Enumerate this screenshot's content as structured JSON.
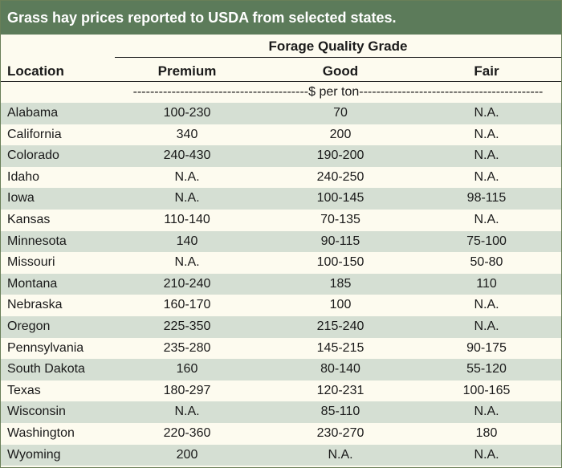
{
  "title": "Grass hay prices reported to USDA from selected states.",
  "header": {
    "group_label": "Forage Quality Grade",
    "location_label": "Location",
    "columns": [
      "Premium",
      "Good",
      "Fair"
    ],
    "units": "-----------------------------------------$ per ton-------------------------------------------"
  },
  "rows": [
    {
      "location": "Alabama",
      "premium": "100-230",
      "good": "70",
      "fair": "N.A."
    },
    {
      "location": "California",
      "premium": "340",
      "good": "200",
      "fair": "N.A."
    },
    {
      "location": "Colorado",
      "premium": "240-430",
      "good": "190-200",
      "fair": "N.A."
    },
    {
      "location": "Idaho",
      "premium": "N.A.",
      "good": "240-250",
      "fair": "N.A."
    },
    {
      "location": "Iowa",
      "premium": "N.A.",
      "good": "100-145",
      "fair": "98-115"
    },
    {
      "location": "Kansas",
      "premium": "110-140",
      "good": "70-135",
      "fair": "N.A."
    },
    {
      "location": "Minnesota",
      "premium": "140",
      "good": "90-115",
      "fair": "75-100"
    },
    {
      "location": "Missouri",
      "premium": "N.A.",
      "good": "100-150",
      "fair": "50-80"
    },
    {
      "location": "Montana",
      "premium": "210-240",
      "good": "185",
      "fair": "110"
    },
    {
      "location": "Nebraska",
      "premium": "160-170",
      "good": "100",
      "fair": "N.A."
    },
    {
      "location": "Oregon",
      "premium": "225-350",
      "good": "215-240",
      "fair": "N.A."
    },
    {
      "location": "Pennsylvania",
      "premium": "235-280",
      "good": "145-215",
      "fair": "90-175"
    },
    {
      "location": "South Dakota",
      "premium": "160",
      "good": "80-140",
      "fair": "55-120"
    },
    {
      "location": "Texas",
      "premium": "180-297",
      "good": "120-231",
      "fair": "100-165"
    },
    {
      "location": "Wisconsin",
      "premium": "N.A.",
      "good": "85-110",
      "fair": "N.A."
    },
    {
      "location": "Washington",
      "premium": "220-360",
      "good": "230-270",
      "fair": "180"
    },
    {
      "location": "Wyoming",
      "premium": "200",
      "good": "N.A.",
      "fair": "N.A."
    }
  ],
  "colors": {
    "title_bg": "#5c7b5a",
    "row_shade": "#d5dfd3",
    "row_plain": "#fdfbef"
  }
}
